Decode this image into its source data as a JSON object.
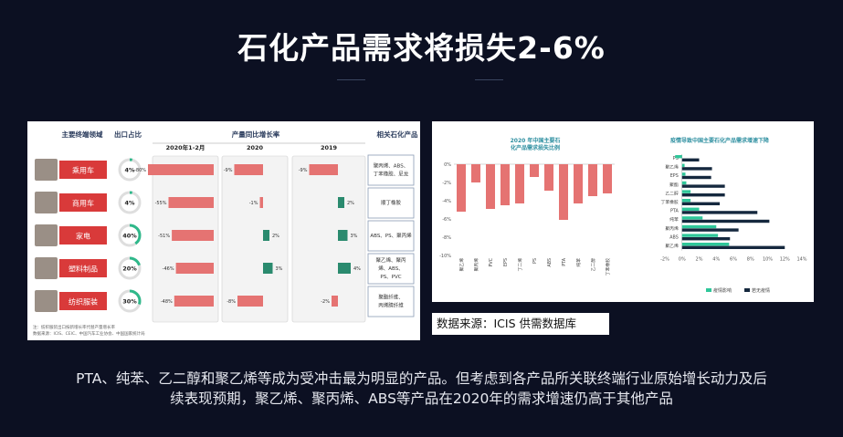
{
  "title": "石化产品需求将损失2-6%",
  "source_note": "数据来源：ICIS 供需数据库",
  "caption_line1": "PTA、纯苯、乙二醇和聚乙烯等成为受冲击最为明显的产品。但考虑到各产品所关联终端行业原始增长动力及后",
  "caption_line2": "续表现预期，聚乙烯、聚丙烯、ABS等产品在2020年的需求增速仍高于其他产品",
  "left_table": {
    "col_headers": [
      "主要终端领域",
      "出口占比",
      "产量同比增长率",
      "相关石化产品"
    ],
    "period_headers": [
      "2020年1-2月",
      "2020",
      "2019"
    ],
    "rows": [
      {
        "sector": "乘用车",
        "export": "4%",
        "export_pct": 4,
        "growth": [
          "-80%",
          "-9%",
          "-9%"
        ],
        "growth_val": [
          -80,
          -9,
          -9
        ],
        "products": [
          "聚丙烯、ABS、",
          "丁苯橡胶、尼龙"
        ]
      },
      {
        "sector": "商用车",
        "export": "4%",
        "export_pct": 4,
        "growth": [
          "-55%",
          "-1%",
          "2%"
        ],
        "growth_val": [
          -55,
          -1,
          2
        ],
        "products": [
          "顺丁橡胶"
        ]
      },
      {
        "sector": "家电",
        "export": "40%",
        "export_pct": 40,
        "growth": [
          "-51%",
          "2%",
          "3%"
        ],
        "growth_val": [
          -51,
          2,
          3
        ],
        "products": [
          "ABS、PS、聚丙烯"
        ]
      },
      {
        "sector": "塑料制品",
        "export": "20%",
        "export_pct": 20,
        "growth": [
          "-46%",
          "3%",
          "4%"
        ],
        "growth_val": [
          -46,
          3,
          4
        ],
        "products": [
          "聚乙烯、聚丙",
          "烯、ABS、",
          "PS、PVC"
        ]
      },
      {
        "sector": "纺织服装",
        "export": "30%",
        "export_pct": 30,
        "growth": [
          "-48%",
          "-8%",
          "-2%"
        ],
        "growth_val": [
          -48,
          -8,
          -2
        ],
        "products": [
          "聚酯纤维、",
          "丙烯腈纤维"
        ]
      }
    ],
    "footnote1": "注：纺织服装出口按新增长率代替产量增长率",
    "footnote2": "数据来源：ICIS、CEIC、中国汽车工业协会、中国国家统计局"
  },
  "chart_data": [
    {
      "type": "bar",
      "title": "2020 年中国主要石化产品需求损失比例",
      "categories": [
        "聚乙烯",
        "聚丙烯",
        "PVC",
        "EPS",
        "丁二烯",
        "PS",
        "ABS",
        "PTA",
        "纯苯",
        "乙二醇",
        "丁苯橡胶"
      ],
      "values": [
        -5.2,
        -2.0,
        -4.9,
        -4.5,
        -4.3,
        -1.4,
        -2.9,
        -6.1,
        -4.3,
        -3.5,
        -3.2
      ],
      "yticks": [
        "0%",
        "-2%",
        "-4%",
        "-6%",
        "-8%",
        "-10%"
      ],
      "ylim": [
        -10,
        0
      ],
      "color": "#e57372"
    },
    {
      "type": "bar",
      "title": "疫情导致中国主要石化产品需求增速下降",
      "categories": [
        "PS",
        "聚乙烯",
        "EPS",
        "聚酯",
        "乙二醇",
        "丁苯橡胶",
        "PTA",
        "纯苯",
        "聚丙烯",
        "ABS",
        "聚乙烯"
      ],
      "series": [
        {
          "name": "疫情影响",
          "color": "#2fc79a",
          "values": [
            -0.8,
            0.3,
            0.4,
            0.5,
            1.0,
            1.0,
            2.0,
            2.4,
            4.0,
            4.2,
            5.5
          ]
        },
        {
          "name": "若无疫情",
          "color": "#15283e",
          "values": [
            2.0,
            3.5,
            3.4,
            5.0,
            5.0,
            4.4,
            8.8,
            10.2,
            6.6,
            5.6,
            12.0
          ]
        }
      ],
      "xticks": [
        "-2%",
        "0%",
        "2%",
        "4%",
        "6%",
        "8%",
        "10%",
        "12%",
        "14%"
      ],
      "xlim": [
        -2,
        14
      ]
    }
  ],
  "colors": {
    "background": "#0c1022",
    "bar_red": "#e57372",
    "bar_green": "#2a8a6e",
    "sector_red": "#d93a3a",
    "dark_navy": "#15283e",
    "teal": "#2fc79a"
  }
}
